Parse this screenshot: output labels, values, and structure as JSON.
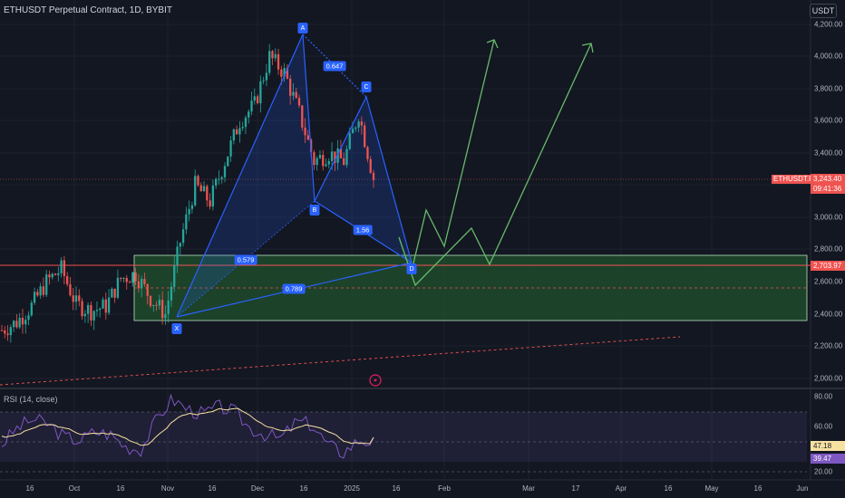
{
  "header": {
    "title": "ETHUSDT Perpetual Contract, 1D, BYBIT",
    "currency_button": "USDT"
  },
  "price_axis": {
    "labels": [
      "4,200.00",
      "4,000.00",
      "3,800.00",
      "3,600.00",
      "3,400.00",
      "3,000.00",
      "2,800.00",
      "2,600.00",
      "2,400.00",
      "2,200.00",
      "2,000.00"
    ]
  },
  "price_tags": {
    "symbol": "ETHUSDT.P",
    "last_price": "3,243.40",
    "countdown": "09:41:36",
    "level": "2,703.97"
  },
  "time_axis": {
    "labels": [
      "16",
      "Oct",
      "16",
      "Nov",
      "16",
      "Dec",
      "16",
      "2025",
      "16",
      "Feb",
      "Mar",
      "17",
      "Apr",
      "16",
      "May",
      "16",
      "Jun"
    ]
  },
  "pattern": {
    "points": [
      "X",
      "A",
      "B",
      "C",
      "D"
    ],
    "ratios": [
      "0.647",
      "1.56",
      "0.579",
      "0.789"
    ]
  },
  "rsi": {
    "title": "RSI (14, close)",
    "axis_labels": [
      "80.00",
      "60.00",
      "20.00"
    ],
    "value": "47.18",
    "ma_value": "39.47"
  },
  "colors": {
    "background": "#131722",
    "bull": "#26a69a",
    "bear": "#ef5350",
    "pattern_line": "#2962ff",
    "projection": "#66bb6a",
    "zone": "#1f4a2b",
    "rsi_line": "#7e57c2",
    "rsi_ma": "#f7e1a1"
  },
  "chart_data": {
    "type": "candlestick",
    "x": [
      "Sep 7",
      "Sep 12",
      "Sep 17",
      "Sep 22",
      "Sep 27",
      "Oct 2",
      "Oct 7",
      "Oct 12",
      "Oct 17",
      "Oct 22",
      "Oct 27",
      "Nov 1",
      "Nov 6",
      "Nov 11",
      "Nov 16",
      "Nov 21",
      "Nov 26",
      "Dec 1",
      "Dec 6",
      "Dec 11",
      "Dec 16",
      "Dec 21",
      "Dec 26",
      "Dec 31",
      "Jan 5",
      "Jan 10"
    ],
    "close": [
      2300,
      2350,
      2450,
      2600,
      2680,
      2460,
      2420,
      2450,
      2620,
      2650,
      2500,
      2400,
      2850,
      3200,
      3100,
      3350,
      3600,
      3700,
      4000,
      3900,
      3650,
      3350,
      3400,
      3350,
      3650,
      3243
    ],
    "ylim": [
      1950,
      4250
    ],
    "rsi": {
      "ylim": [
        10,
        85
      ],
      "value": 47.18,
      "ma_value": 39.47
    }
  }
}
